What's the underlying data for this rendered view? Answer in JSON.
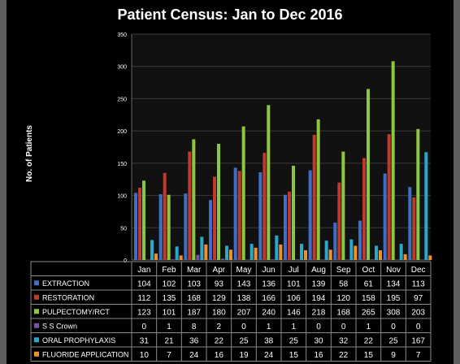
{
  "chart_data": {
    "type": "bar",
    "title": "Patient Census: Jan to Dec 2016",
    "xlabel": "",
    "ylabel": "No. of Patients",
    "ylim": [
      0,
      350
    ],
    "yticks": [
      0,
      50,
      100,
      150,
      200,
      250,
      300,
      350
    ],
    "grid": true,
    "legend_placement": "bottom-table",
    "categories": [
      "Jan",
      "Feb",
      "Mar",
      "Apr",
      "May",
      "Jun",
      "Jul",
      "Aug",
      "Sep",
      "Oct",
      "Nov",
      "Dec"
    ],
    "series": [
      {
        "name": "EXTRACTION",
        "color": "#3f6fc4",
        "values": [
          104,
          102,
          103,
          93,
          143,
          136,
          101,
          139,
          58,
          61,
          134,
          113
        ]
      },
      {
        "name": "RESTORATION",
        "color": "#c0392b",
        "values": [
          112,
          135,
          168,
          129,
          138,
          166,
          106,
          194,
          120,
          158,
          195,
          97
        ]
      },
      {
        "name": "PULPECTOMY/RCT",
        "color": "#8dc63f",
        "values": [
          123,
          101,
          187,
          180,
          207,
          240,
          146,
          218,
          168,
          265,
          308,
          203
        ]
      },
      {
        "name": "S S Crown",
        "color": "#7b4fa6",
        "values": [
          0,
          1,
          8,
          2,
          0,
          1,
          1,
          0,
          0,
          1,
          0,
          0
        ]
      },
      {
        "name": "ORAL PROPHYLAXIS",
        "color": "#2aa7c9",
        "values": [
          31,
          21,
          36,
          22,
          25,
          38,
          25,
          30,
          32,
          22,
          25,
          167
        ]
      },
      {
        "name": "FLUORIDE APPLICATION",
        "color": "#f0902a",
        "values": [
          10,
          7,
          24,
          16,
          19,
          24,
          15,
          16,
          22,
          15,
          9,
          7
        ]
      }
    ]
  }
}
